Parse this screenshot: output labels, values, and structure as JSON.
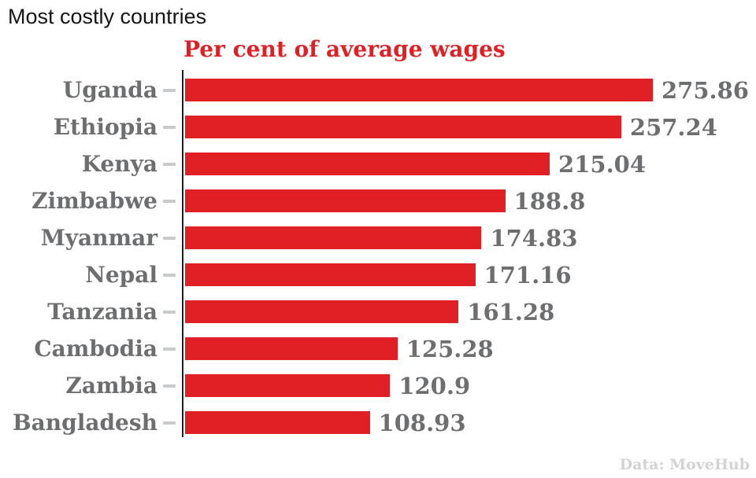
{
  "page": {
    "title": "Most costly countries",
    "source": "Data: MoveHub"
  },
  "chart_data": {
    "type": "bar",
    "orientation": "horizontal",
    "title": "Per cent of average wages",
    "categories": [
      "Uganda",
      "Ethiopia",
      "Kenya",
      "Zimbabwe",
      "Myanmar",
      "Nepal",
      "Tanzania",
      "Cambodia",
      "Zambia",
      "Bangladesh"
    ],
    "values": [
      275.86,
      257.24,
      215.04,
      188.8,
      174.83,
      171.16,
      161.28,
      125.28,
      120.9,
      108.93
    ],
    "xlabel": "",
    "ylabel": "",
    "xlim": [
      0,
      275.86
    ],
    "grid": false,
    "legend": false,
    "data_labels": true,
    "bar_color": "#e12026",
    "label_color": "#6d6e70",
    "axis_color": "#231f20",
    "tick_color": "#c9cacc",
    "title_color": "#e12026"
  }
}
